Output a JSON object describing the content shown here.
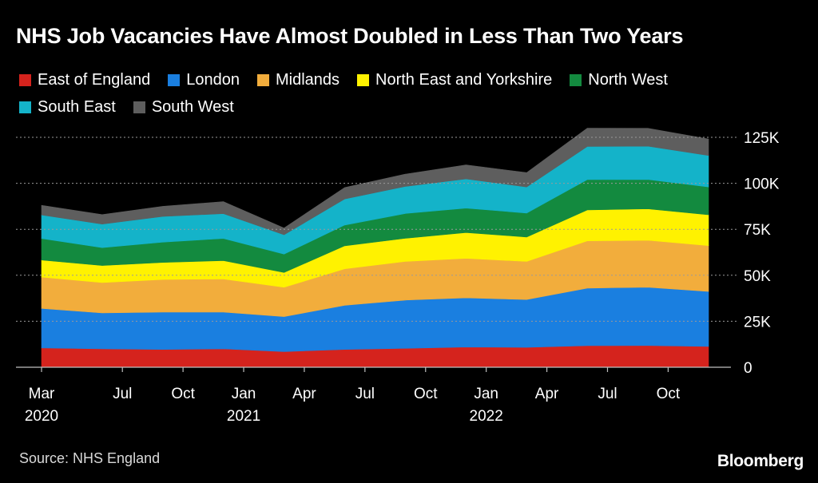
{
  "chart_data": {
    "type": "area",
    "stacked": true,
    "title": "NHS Job Vacancies Have Almost Doubled in Less Than Two Years",
    "source": "Source: NHS England",
    "brand": "Bloomberg",
    "x": [
      "2020-03",
      "2020-06",
      "2020-09",
      "2020-12",
      "2021-03",
      "2021-06",
      "2021-09",
      "2021-12",
      "2022-03",
      "2022-06",
      "2022-09",
      "2022-12"
    ],
    "x_ticks": [
      {
        "x": "2020-03",
        "label": "Mar",
        "year": "2020"
      },
      {
        "x": "2020-07",
        "label": "Jul",
        "year": ""
      },
      {
        "x": "2020-10",
        "label": "Oct",
        "year": ""
      },
      {
        "x": "2021-01",
        "label": "Jan",
        "year": "2021"
      },
      {
        "x": "2021-04",
        "label": "Apr",
        "year": ""
      },
      {
        "x": "2021-07",
        "label": "Jul",
        "year": ""
      },
      {
        "x": "2021-10",
        "label": "Oct",
        "year": ""
      },
      {
        "x": "2022-01",
        "label": "Jan",
        "year": "2022"
      },
      {
        "x": "2022-04",
        "label": "Apr",
        "year": ""
      },
      {
        "x": "2022-07",
        "label": "Jul",
        "year": ""
      },
      {
        "x": "2022-10",
        "label": "Oct",
        "year": ""
      }
    ],
    "y_ticks": [
      {
        "value": 0,
        "label": "0"
      },
      {
        "value": 25000,
        "label": "25K"
      },
      {
        "value": 50000,
        "label": "50K"
      },
      {
        "value": 75000,
        "label": "75K"
      },
      {
        "value": 100000,
        "label": "100K"
      },
      {
        "value": 125000,
        "label": "125K"
      }
    ],
    "ylim": [
      0,
      125000
    ],
    "grid": true,
    "legend_position": "top",
    "series": [
      {
        "name": "East of England",
        "color": "#d5231d",
        "values": [
          10500,
          10000,
          9700,
          10000,
          8500,
          9700,
          10300,
          11000,
          10800,
          11700,
          11800,
          11300
        ]
      },
      {
        "name": "London",
        "color": "#1a7fe0",
        "values": [
          21500,
          19500,
          20300,
          20000,
          19000,
          24000,
          26200,
          26700,
          26000,
          31300,
          31700,
          29900
        ]
      },
      {
        "name": "Midlands",
        "color": "#f2ad3c",
        "values": [
          17000,
          16500,
          17700,
          18000,
          16000,
          19800,
          21000,
          21500,
          20700,
          25700,
          25500,
          24900
        ]
      },
      {
        "name": "North East and Yorkshire",
        "color": "#fff200",
        "values": [
          9300,
          9300,
          9300,
          10000,
          8000,
          12500,
          12600,
          14000,
          13300,
          16800,
          17100,
          16800
        ]
      },
      {
        "name": "North West",
        "color": "#138a3f",
        "values": [
          11700,
          9700,
          11000,
          12000,
          10000,
          11300,
          13500,
          13300,
          13000,
          16500,
          16000,
          15100
        ]
      },
      {
        "name": "South East",
        "color": "#14b3c9",
        "values": [
          12800,
          12800,
          14000,
          13500,
          10500,
          14200,
          14700,
          15900,
          14200,
          18000,
          18100,
          17100
        ]
      },
      {
        "name": "South West",
        "color": "#5e5e5e",
        "values": [
          5200,
          5200,
          5500,
          6500,
          3700,
          6200,
          6700,
          7600,
          7800,
          10000,
          9700,
          9000
        ]
      }
    ]
  }
}
